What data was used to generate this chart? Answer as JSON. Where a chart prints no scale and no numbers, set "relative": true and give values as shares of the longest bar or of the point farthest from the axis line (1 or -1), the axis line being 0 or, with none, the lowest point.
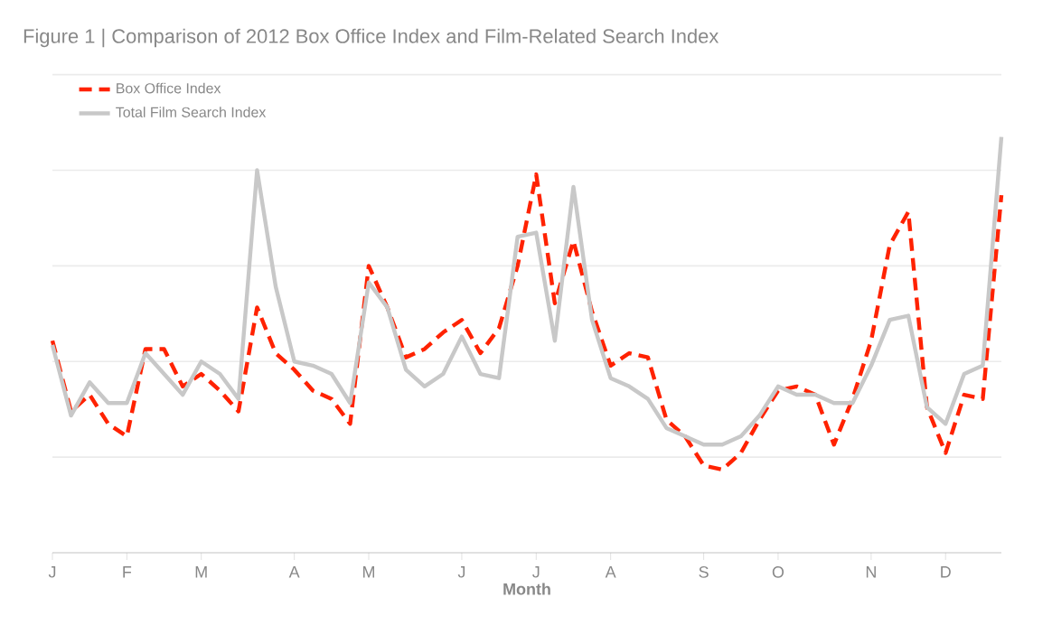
{
  "chart_data": {
    "type": "line",
    "title": "Figure 1 | Comparison of 2012 Box Office Index and Film-Related Search Index",
    "xlabel": "Month",
    "relative": true,
    "categories": [
      "J",
      null,
      null,
      null,
      "F",
      null,
      null,
      null,
      "M",
      null,
      null,
      null,
      null,
      "A",
      null,
      null,
      null,
      "M",
      null,
      null,
      null,
      null,
      "J",
      null,
      null,
      null,
      "J",
      null,
      null,
      null,
      "A",
      null,
      null,
      null,
      null,
      "S",
      null,
      null,
      null,
      "O",
      null,
      null,
      null,
      null,
      "N",
      null,
      null,
      null,
      "D",
      null,
      null,
      null
    ],
    "grid": "y",
    "legend": "top left",
    "marker": "none",
    "series": [
      {
        "name": "Box Office Index",
        "color": "#ff2200",
        "line_style": "dashed",
        "values": [
          0.51,
          0.34,
          0.38,
          0.31,
          0.28,
          0.49,
          0.49,
          0.4,
          0.43,
          0.39,
          0.34,
          0.59,
          0.48,
          0.44,
          0.39,
          0.37,
          0.31,
          0.69,
          0.59,
          0.47,
          0.49,
          0.53,
          0.56,
          0.48,
          0.54,
          0.69,
          0.91,
          0.6,
          0.75,
          0.58,
          0.45,
          0.48,
          0.47,
          0.32,
          0.28,
          0.21,
          0.2,
          0.24,
          0.32,
          0.39,
          0.4,
          0.38,
          0.26,
          0.37,
          0.51,
          0.74,
          0.82,
          0.35,
          0.24,
          0.38,
          0.37,
          0.86
        ]
      },
      {
        "name": "Total Film Search Index",
        "color": "#c8c8c8",
        "line_style": "solid",
        "values": [
          0.5,
          0.33,
          0.41,
          0.36,
          0.36,
          0.48,
          0.43,
          0.38,
          0.46,
          0.43,
          0.37,
          0.92,
          0.64,
          0.46,
          0.45,
          0.43,
          0.36,
          0.65,
          0.59,
          0.44,
          0.4,
          0.43,
          0.52,
          0.43,
          0.42,
          0.76,
          0.77,
          0.51,
          0.88,
          0.56,
          0.42,
          0.4,
          0.37,
          0.3,
          0.28,
          0.26,
          0.26,
          0.28,
          0.33,
          0.4,
          0.38,
          0.38,
          0.36,
          0.36,
          0.45,
          0.56,
          0.57,
          0.35,
          0.31,
          0.43,
          0.45,
          1.0
        ]
      }
    ]
  }
}
